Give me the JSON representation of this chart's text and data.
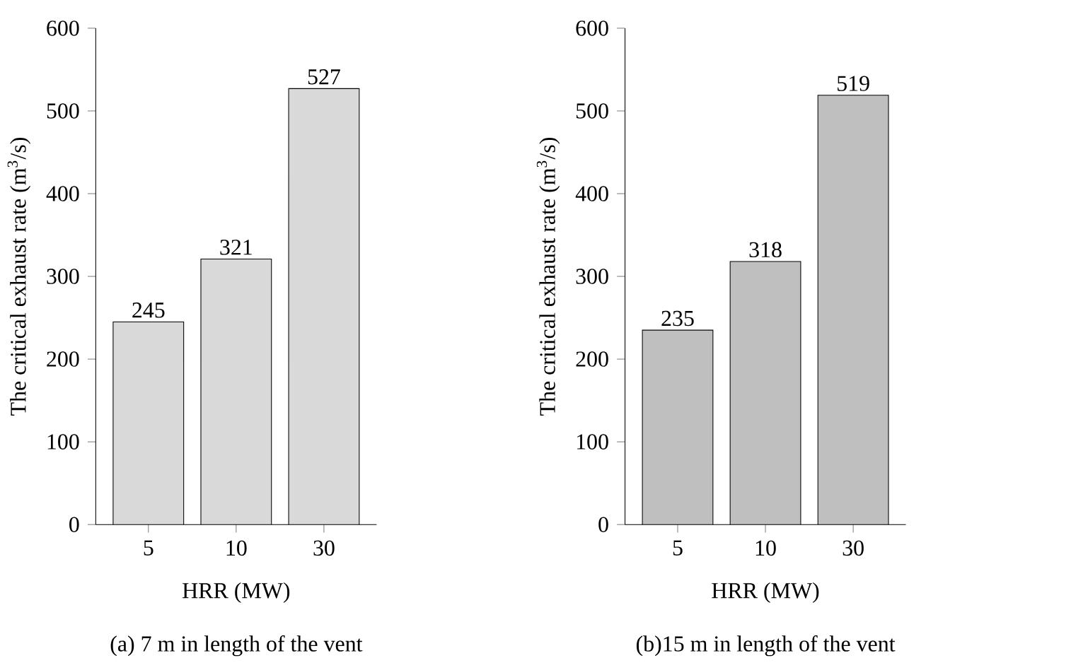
{
  "chart_data": [
    {
      "type": "bar",
      "xlabel": "HRR (MW)",
      "ylabel": "The critical exhaust rate (m$^{3}$/s)",
      "categories": [
        "5",
        "10",
        "30"
      ],
      "values": [
        245,
        321,
        527
      ],
      "color": "#d9d9d9",
      "ylim": [
        0,
        600
      ],
      "yticks": [
        0,
        100,
        200,
        300,
        400,
        500,
        600
      ],
      "data_labels": true,
      "annotations": [
        "(a) 7 m in length of the vent"
      ]
    },
    {
      "type": "bar",
      "xlabel": "HRR (MW)",
      "ylabel": "The critical exhaust rate (m$^{3}$/s)",
      "categories": [
        "5",
        "10",
        "30"
      ],
      "values": [
        235,
        318,
        519
      ],
      "color": "#bfbfbf",
      "ylim": [
        0,
        600
      ],
      "yticks": [
        0,
        100,
        200,
        300,
        400,
        500,
        600
      ],
      "data_labels": true,
      "annotations": [
        "(b)15 m in length of the vent"
      ]
    }
  ]
}
